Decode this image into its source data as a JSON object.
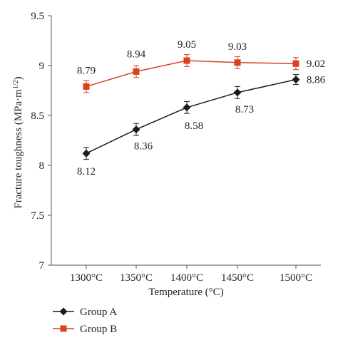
{
  "chart_data": {
    "type": "line",
    "title": "",
    "xlabel": "Temperature (°C)",
    "ylabel": "Fracture toughness (MPa·m",
    "ylabel_sup": "1/2",
    "ylabel_end": ")",
    "categories": [
      "1300°C",
      "1350°C",
      "1400°C",
      "1450°C",
      "1500°C"
    ],
    "ylim": [
      7,
      9.5
    ],
    "yticks": [
      "7",
      "7.5",
      "8",
      "8.5",
      "9",
      "9.5"
    ],
    "yticks_values": [
      7,
      7.5,
      8,
      8.5,
      9,
      9.5
    ],
    "grid": false,
    "legend_position": "bottom-left",
    "series": [
      {
        "name": "Group A",
        "values": [
          8.12,
          8.36,
          8.58,
          8.73,
          8.86
        ],
        "labels": [
          "8.12",
          "8.36",
          "8.58",
          "8.73",
          "8.86"
        ],
        "errors": [
          0.06,
          0.06,
          0.06,
          0.06,
          0.05
        ],
        "color": "#1a1a1a",
        "marker": "diamond"
      },
      {
        "name": "Group B",
        "values": [
          8.79,
          8.94,
          9.05,
          9.03,
          9.02
        ],
        "labels": [
          "8.79",
          "8.94",
          "9.05",
          "9.03",
          "9.02"
        ],
        "errors": [
          0.06,
          0.06,
          0.06,
          0.06,
          0.06
        ],
        "color": "#d9421c",
        "marker": "square"
      }
    ]
  }
}
